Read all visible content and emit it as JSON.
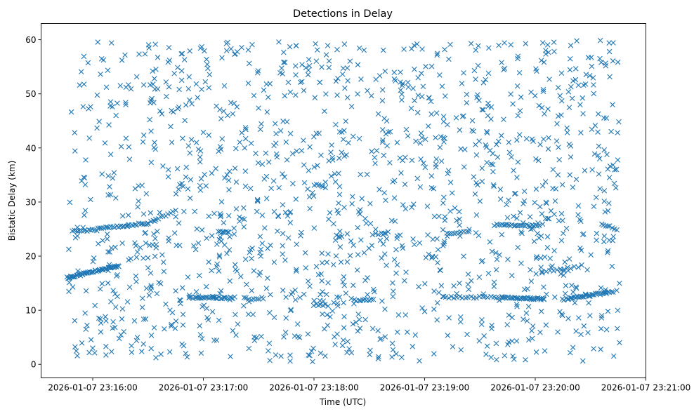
{
  "chart_data": {
    "type": "scatter",
    "title": "Detections in Delay",
    "xlabel": "Time (UTC)",
    "ylabel": "Bistatic Delay (km)",
    "marker": "x",
    "color": "#1f77b4",
    "xlim_seconds": [
      -28,
      300
    ],
    "ylim": [
      -2.5,
      63
    ],
    "x_ticks": [
      {
        "t": 0,
        "label": "2026-01-07 23:16:00"
      },
      {
        "t": 60,
        "label": "2026-01-07 23:17:00"
      },
      {
        "t": 120,
        "label": "2026-01-07 23:18:00"
      },
      {
        "t": 180,
        "label": "2026-01-07 23:19:00"
      },
      {
        "t": 240,
        "label": "2026-01-07 23:20:00"
      },
      {
        "t": 300,
        "label": "2026-01-07 23:21:00"
      }
    ],
    "y_ticks": [
      0,
      10,
      20,
      30,
      40,
      50,
      60
    ],
    "x_data_range_seconds": [
      -14,
      286
    ],
    "tracks": [
      {
        "t0": -14,
        "t1": 14,
        "y0": 16.0,
        "y1": 18.2,
        "n": 55
      },
      {
        "t0": -11,
        "t1": 2,
        "y0": 24.6,
        "y1": 24.8,
        "n": 14
      },
      {
        "t0": 3,
        "t1": 30,
        "y0": 25.1,
        "y1": 26.1,
        "n": 28
      },
      {
        "t0": 30,
        "t1": 45,
        "y0": 26.1,
        "y1": 28.4,
        "n": 12
      },
      {
        "t0": 68,
        "t1": 74,
        "y0": 24.6,
        "y1": 24.4,
        "n": 8
      },
      {
        "t0": 52,
        "t1": 77,
        "y0": 12.3,
        "y1": 12.3,
        "n": 30
      },
      {
        "t0": 82,
        "t1": 90,
        "y0": 12.2,
        "y1": 11.9,
        "n": 7
      },
      {
        "t0": 120,
        "t1": 126,
        "y0": 11.0,
        "y1": 11.0,
        "n": 6
      },
      {
        "t0": 120,
        "t1": 126,
        "y0": 33.2,
        "y1": 32.8,
        "n": 6
      },
      {
        "t0": 142,
        "t1": 152,
        "y0": 11.8,
        "y1": 12.0,
        "n": 10
      },
      {
        "t0": 152,
        "t1": 158,
        "y0": 24.0,
        "y1": 24.2,
        "n": 5
      },
      {
        "t0": 192,
        "t1": 204,
        "y0": 24.2,
        "y1": 24.6,
        "n": 10
      },
      {
        "t0": 190,
        "t1": 222,
        "y0": 12.4,
        "y1": 12.4,
        "n": 22
      },
      {
        "t0": 222,
        "t1": 245,
        "y0": 12.3,
        "y1": 12.1,
        "n": 35
      },
      {
        "t0": 218,
        "t1": 242,
        "y0": 25.8,
        "y1": 25.6,
        "n": 26
      },
      {
        "t0": 255,
        "t1": 282,
        "y0": 12.0,
        "y1": 13.4,
        "n": 36
      },
      {
        "t0": 276,
        "t1": 284,
        "y0": 26.0,
        "y1": 25.0,
        "n": 8
      },
      {
        "t0": 244,
        "t1": 265,
        "y0": 17.0,
        "y1": 18.2,
        "n": 12
      }
    ],
    "scatter_note": "Dense field of roughly 1,400 uniformly scattered 'x' markers over delay 0.5-60 km across the full time span, plus the linear tracks listed above.",
    "scatter_count": 1400,
    "scatter_y_range": [
      0.5,
      60
    ]
  }
}
